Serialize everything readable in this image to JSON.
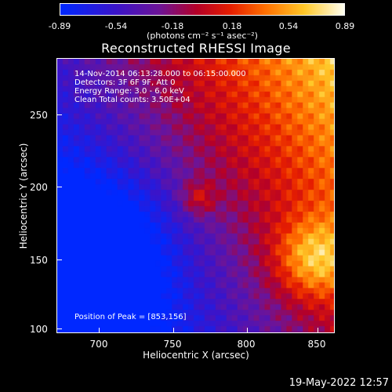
{
  "colorbar": {
    "tick_labels": [
      "-0.89",
      "-0.54",
      "-0.18",
      "0.18",
      "0.54",
      "0.89"
    ],
    "units": "(photons cm⁻² s⁻¹ asec⁻²)"
  },
  "plot": {
    "title": "Reconstructed RHESSI Image",
    "info_lines": [
      "14-Nov-2014 06:13:28.000 to 06:15:00.000",
      "Detectors: 3F 6F 9F, Att 0",
      "Energy Range: 3.0 - 6.0 keV",
      "Clean     Total counts: 3.50E+04"
    ],
    "peak_label": "Position of Peak = [853,156]"
  },
  "axes": {
    "x_title": "Heliocentric X (arcsec)",
    "y_title": "Heliocentric Y (arcsec)",
    "x_ticks": [
      "700",
      "750",
      "800",
      "850"
    ],
    "y_ticks": [
      "100",
      "150",
      "200",
      "250"
    ]
  },
  "footer": {
    "timestamp": "19-May-2022 12:57"
  },
  "colors": {
    "background": "#000000",
    "text": "#ffffff"
  }
}
